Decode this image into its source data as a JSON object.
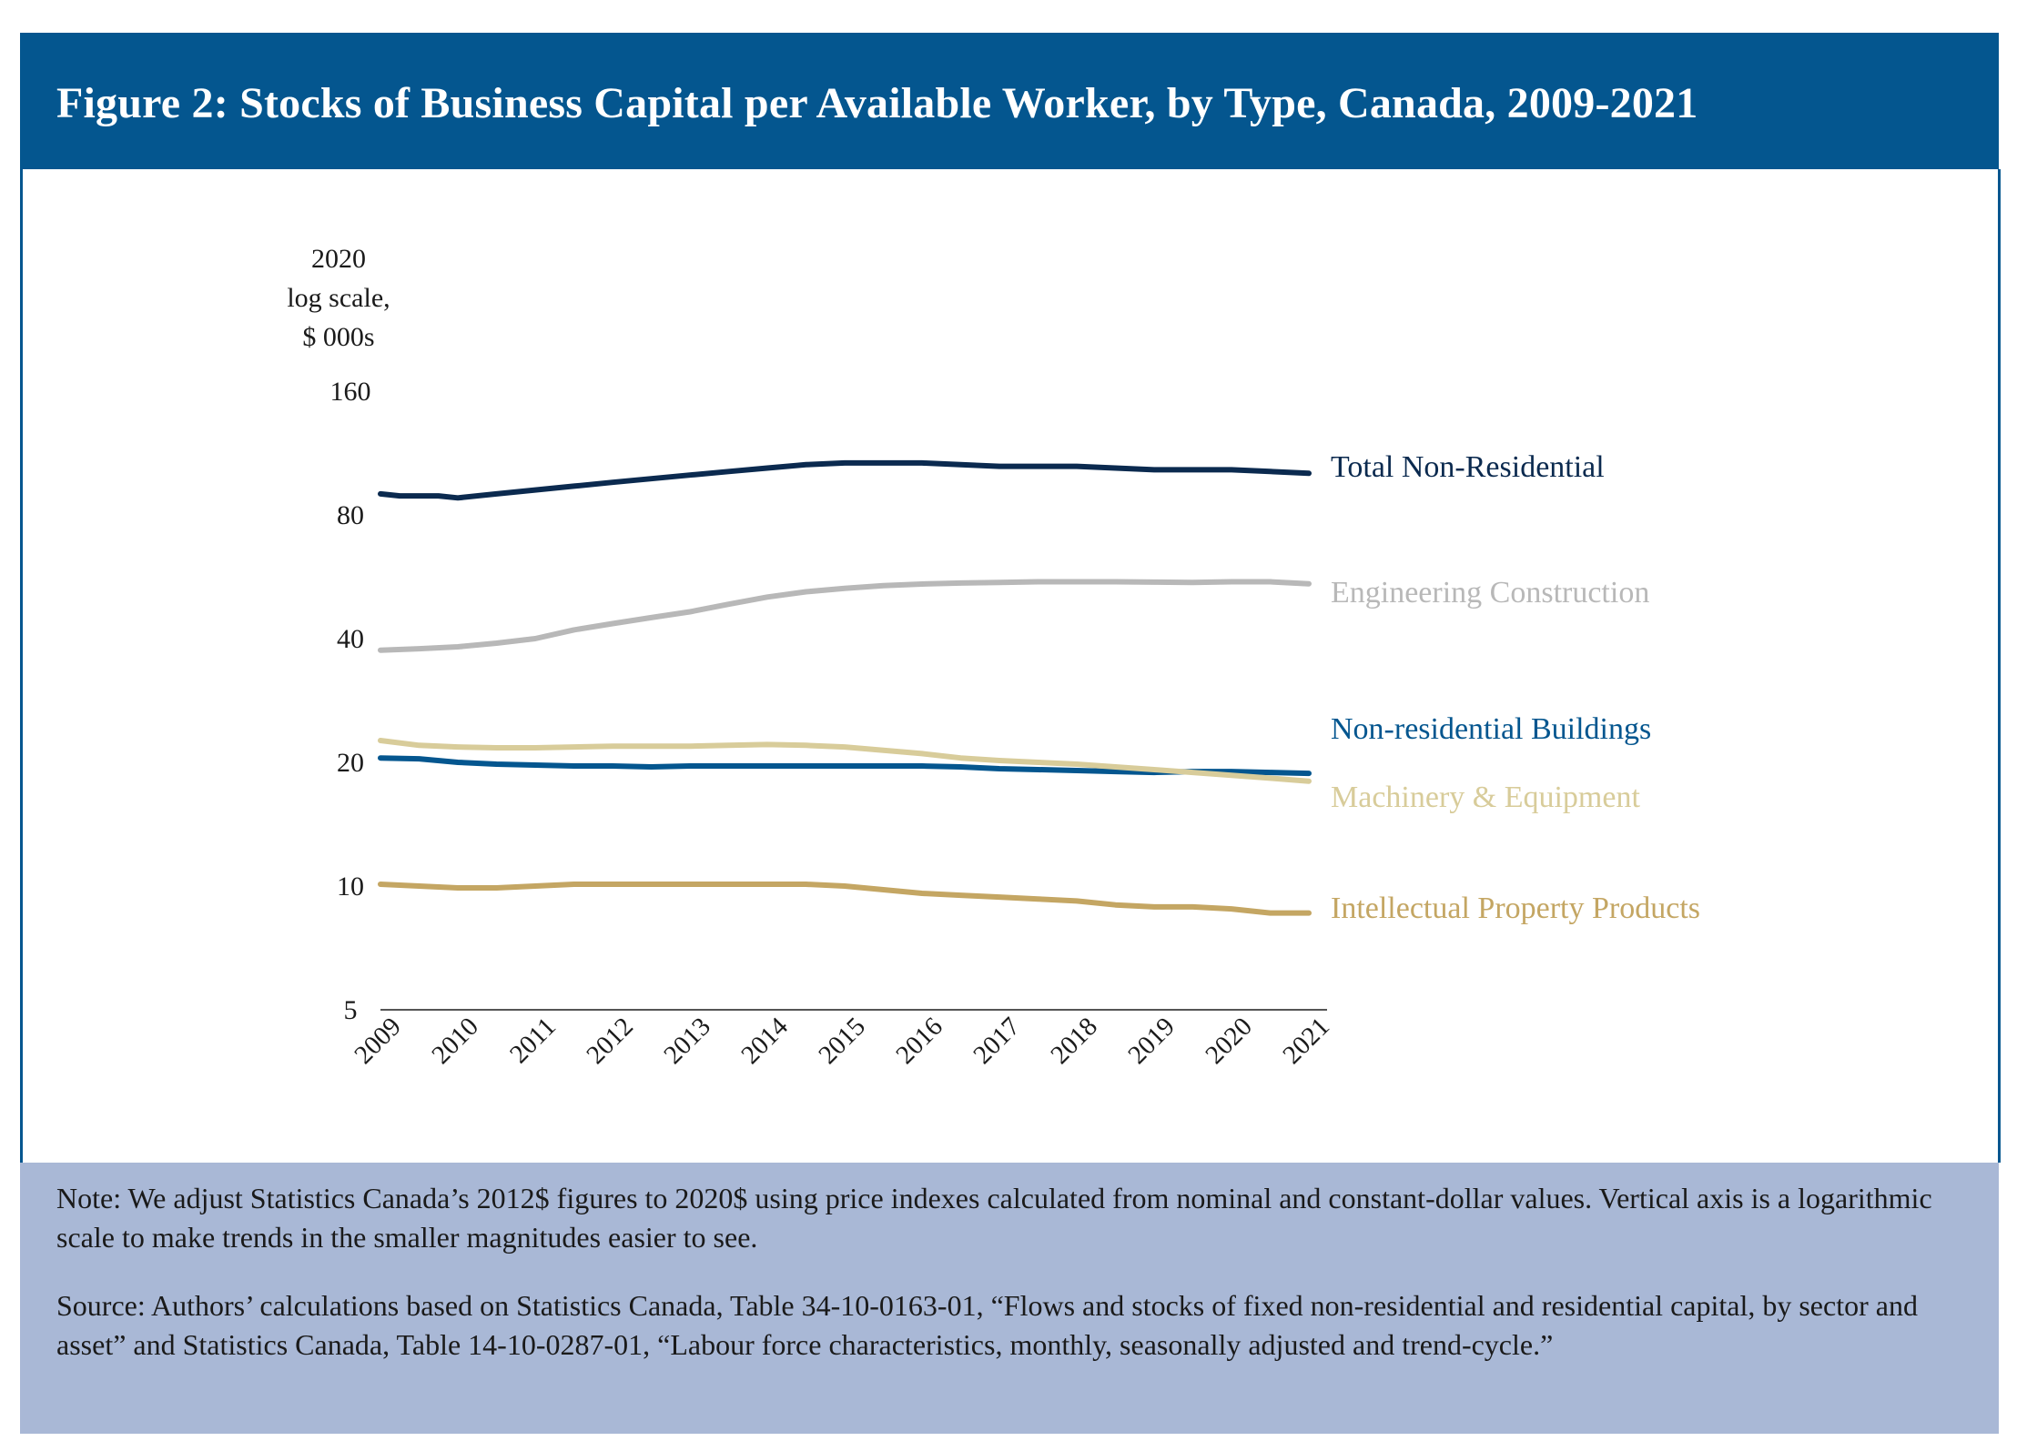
{
  "figure": {
    "title": "Figure 2: Stocks of Business Capital per Available Worker, by Type, Canada, 2009-2021",
    "note": "Note: We adjust Statistics Canada’s 2012$ figures to 2020$ using price indexes calculated from nominal and constant-dollar values. Vertical axis is a logarithmic scale to make trends in the smaller magnitudes easier to see.",
    "source": "Source: Authors’ calculations based on Statistics Canada, Table 34-10-0163-01, “Flows and stocks of fixed non-residential and residential capital, by sector and asset” and Statistics Canada, Table 14-10-0287-01, “Labour force characteristics, monthly, seasonally adjusted and trend-cycle.”"
  },
  "chart_data": {
    "type": "line",
    "title": "Figure 2: Stocks of Business Capital per Available Worker, by Type, Canada, 2009-2021",
    "ylabel": [
      "2020",
      "log scale,",
      "$ 000s"
    ],
    "yscale": "log",
    "ylim": [
      5,
      160
    ],
    "yticks": [
      5,
      10,
      20,
      40,
      80,
      160
    ],
    "xticks": [
      "2009",
      "2010",
      "2011",
      "2012",
      "2013",
      "2014",
      "2015",
      "2016",
      "2017",
      "2018",
      "2019",
      "2020",
      "2021"
    ],
    "xlim": [
      2009,
      2021
    ],
    "grid": false,
    "legend": "direct labels at right end of each line",
    "series": [
      {
        "name": "Total Non-Residential",
        "color": "#0b2a4f",
        "values": [
          [
            2009.0,
            90
          ],
          [
            2009.25,
            89
          ],
          [
            2009.75,
            89
          ],
          [
            2010.0,
            88
          ],
          [
            2010.5,
            90
          ],
          [
            2011.0,
            92
          ],
          [
            2011.5,
            94
          ],
          [
            2012.0,
            96
          ],
          [
            2012.5,
            98
          ],
          [
            2013.0,
            100
          ],
          [
            2013.5,
            102
          ],
          [
            2014.0,
            104
          ],
          [
            2014.5,
            106
          ],
          [
            2015.0,
            107
          ],
          [
            2015.5,
            107
          ],
          [
            2016.0,
            107
          ],
          [
            2016.5,
            106
          ],
          [
            2017.0,
            105
          ],
          [
            2017.5,
            105
          ],
          [
            2018.0,
            105
          ],
          [
            2018.5,
            104
          ],
          [
            2019.0,
            103
          ],
          [
            2019.5,
            103
          ],
          [
            2020.0,
            103
          ],
          [
            2020.5,
            102
          ],
          [
            2021.0,
            101
          ]
        ]
      },
      {
        "name": "Engineering Construction",
        "color": "#b8b8b8",
        "values": [
          [
            2009.0,
            37.5
          ],
          [
            2009.5,
            37.8
          ],
          [
            2010.0,
            38.2
          ],
          [
            2010.5,
            39.0
          ],
          [
            2011.0,
            40.0
          ],
          [
            2011.5,
            42.0
          ],
          [
            2012.0,
            43.5
          ],
          [
            2012.5,
            45.0
          ],
          [
            2013.0,
            46.5
          ],
          [
            2013.5,
            48.5
          ],
          [
            2014.0,
            50.5
          ],
          [
            2014.5,
            52.0
          ],
          [
            2015.0,
            53.0
          ],
          [
            2015.5,
            53.8
          ],
          [
            2016.0,
            54.3
          ],
          [
            2016.5,
            54.6
          ],
          [
            2017.0,
            54.8
          ],
          [
            2017.5,
            55.0
          ],
          [
            2018.0,
            55.0
          ],
          [
            2018.5,
            55.0
          ],
          [
            2019.0,
            54.9
          ],
          [
            2019.5,
            54.8
          ],
          [
            2020.0,
            55.0
          ],
          [
            2020.5,
            55.0
          ],
          [
            2021.0,
            54.4
          ]
        ]
      },
      {
        "name": "Non-residential Buildings",
        "color": "#04568f",
        "values": [
          [
            2009.0,
            20.5
          ],
          [
            2009.5,
            20.4
          ],
          [
            2010.0,
            20.0
          ],
          [
            2010.5,
            19.8
          ],
          [
            2011.0,
            19.7
          ],
          [
            2011.5,
            19.6
          ],
          [
            2012.0,
            19.6
          ],
          [
            2012.5,
            19.5
          ],
          [
            2013.0,
            19.6
          ],
          [
            2013.5,
            19.6
          ],
          [
            2014.0,
            19.6
          ],
          [
            2014.5,
            19.6
          ],
          [
            2015.0,
            19.6
          ],
          [
            2015.5,
            19.6
          ],
          [
            2016.0,
            19.6
          ],
          [
            2016.5,
            19.5
          ],
          [
            2017.0,
            19.3
          ],
          [
            2017.5,
            19.2
          ],
          [
            2018.0,
            19.1
          ],
          [
            2018.5,
            19.0
          ],
          [
            2019.0,
            18.9
          ],
          [
            2019.5,
            19.0
          ],
          [
            2020.0,
            19.0
          ],
          [
            2020.5,
            18.9
          ],
          [
            2021.0,
            18.8
          ]
        ]
      },
      {
        "name": "Machinery & Equipment",
        "color": "#d8cc9a",
        "values": [
          [
            2009.0,
            22.6
          ],
          [
            2009.5,
            22.0
          ],
          [
            2010.0,
            21.8
          ],
          [
            2010.5,
            21.7
          ],
          [
            2011.0,
            21.7
          ],
          [
            2011.5,
            21.8
          ],
          [
            2012.0,
            21.9
          ],
          [
            2012.5,
            21.9
          ],
          [
            2013.0,
            21.9
          ],
          [
            2013.5,
            22.0
          ],
          [
            2014.0,
            22.1
          ],
          [
            2014.5,
            22.0
          ],
          [
            2015.0,
            21.8
          ],
          [
            2015.5,
            21.4
          ],
          [
            2016.0,
            21.0
          ],
          [
            2016.5,
            20.5
          ],
          [
            2017.0,
            20.2
          ],
          [
            2017.5,
            20.0
          ],
          [
            2018.0,
            19.8
          ],
          [
            2018.5,
            19.5
          ],
          [
            2019.0,
            19.2
          ],
          [
            2019.5,
            18.9
          ],
          [
            2020.0,
            18.6
          ],
          [
            2020.5,
            18.3
          ],
          [
            2021.0,
            18.0
          ]
        ]
      },
      {
        "name": "Intellectual Property Products",
        "color": "#c4a663",
        "values": [
          [
            2009.0,
            10.1
          ],
          [
            2009.5,
            10.0
          ],
          [
            2010.0,
            9.9
          ],
          [
            2010.5,
            9.9
          ],
          [
            2011.0,
            10.0
          ],
          [
            2011.5,
            10.1
          ],
          [
            2012.0,
            10.1
          ],
          [
            2012.5,
            10.1
          ],
          [
            2013.0,
            10.1
          ],
          [
            2013.5,
            10.1
          ],
          [
            2014.0,
            10.1
          ],
          [
            2014.5,
            10.1
          ],
          [
            2015.0,
            10.0
          ],
          [
            2015.5,
            9.8
          ],
          [
            2016.0,
            9.6
          ],
          [
            2016.5,
            9.5
          ],
          [
            2017.0,
            9.4
          ],
          [
            2017.5,
            9.3
          ],
          [
            2018.0,
            9.2
          ],
          [
            2018.5,
            9.0
          ],
          [
            2019.0,
            8.9
          ],
          [
            2019.5,
            8.9
          ],
          [
            2020.0,
            8.8
          ],
          [
            2020.5,
            8.6
          ],
          [
            2021.0,
            8.6
          ]
        ]
      }
    ]
  }
}
